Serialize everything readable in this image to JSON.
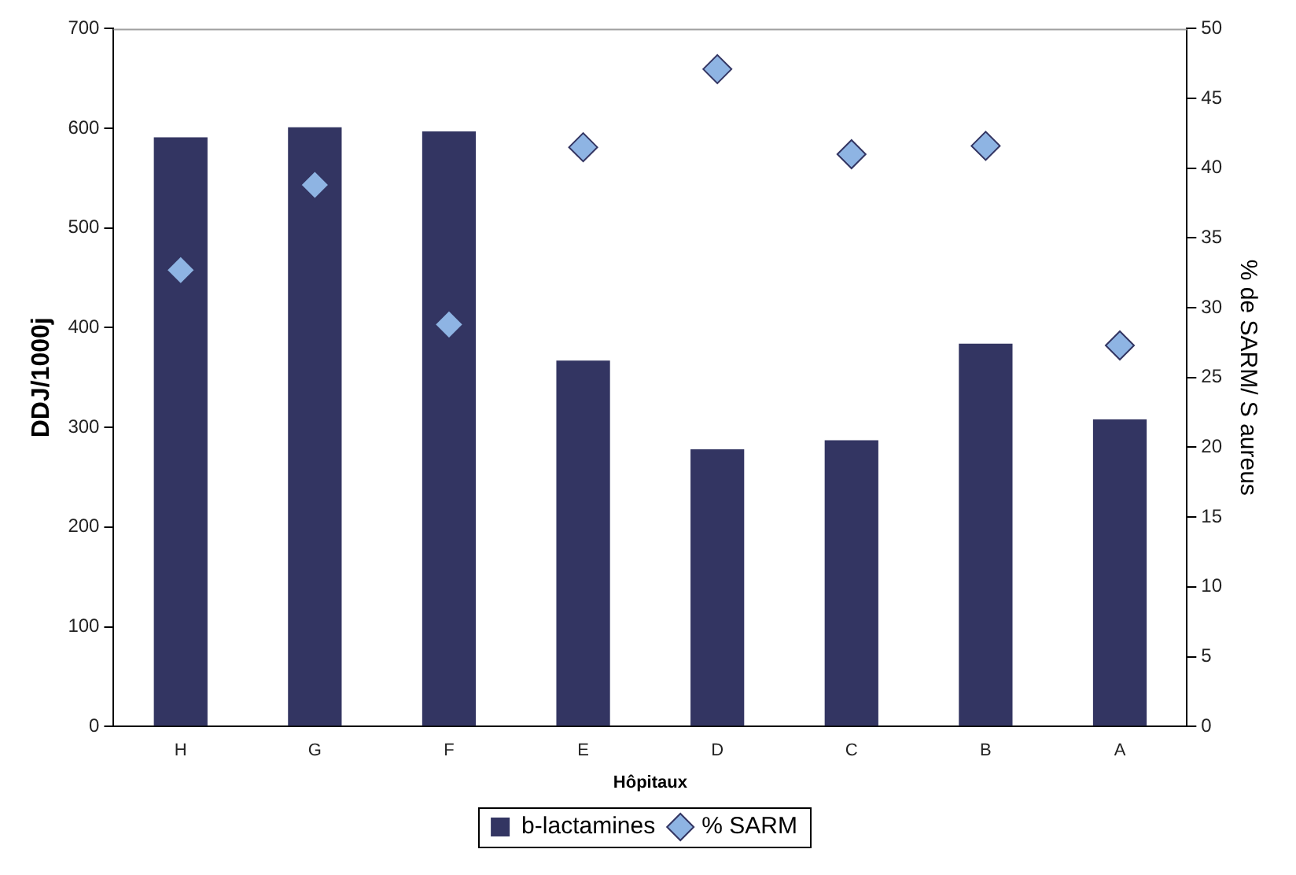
{
  "chart_data": {
    "type": "bar",
    "xlabel": "Hôpitaux",
    "ylabel": "DDJ/1000j",
    "y2label": "% de SARM/ S aureus",
    "categories": [
      "H",
      "G",
      "F",
      "E",
      "D",
      "C",
      "B",
      "A"
    ],
    "series": [
      {
        "name": "b-lactamines",
        "color": "#333562",
        "values": [
          591,
          601,
          597,
          367,
          278,
          287,
          384,
          308
        ]
      },
      {
        "name": "% SARM",
        "type": "scatter",
        "axis": "y2",
        "color": "#8eb4e3",
        "marker": "diamond",
        "values": [
          32.7,
          38.8,
          28.8,
          41.5,
          47.1,
          41.0,
          41.6,
          27.3
        ]
      }
    ],
    "ylim": [
      0,
      700
    ],
    "yticks": [
      0,
      100,
      200,
      300,
      400,
      500,
      600,
      700
    ],
    "y2lim": [
      0,
      50
    ],
    "y2ticks": [
      0,
      5,
      10,
      15,
      20,
      25,
      30,
      35,
      40,
      45,
      50
    ],
    "grid": false,
    "legend": "bottom"
  }
}
